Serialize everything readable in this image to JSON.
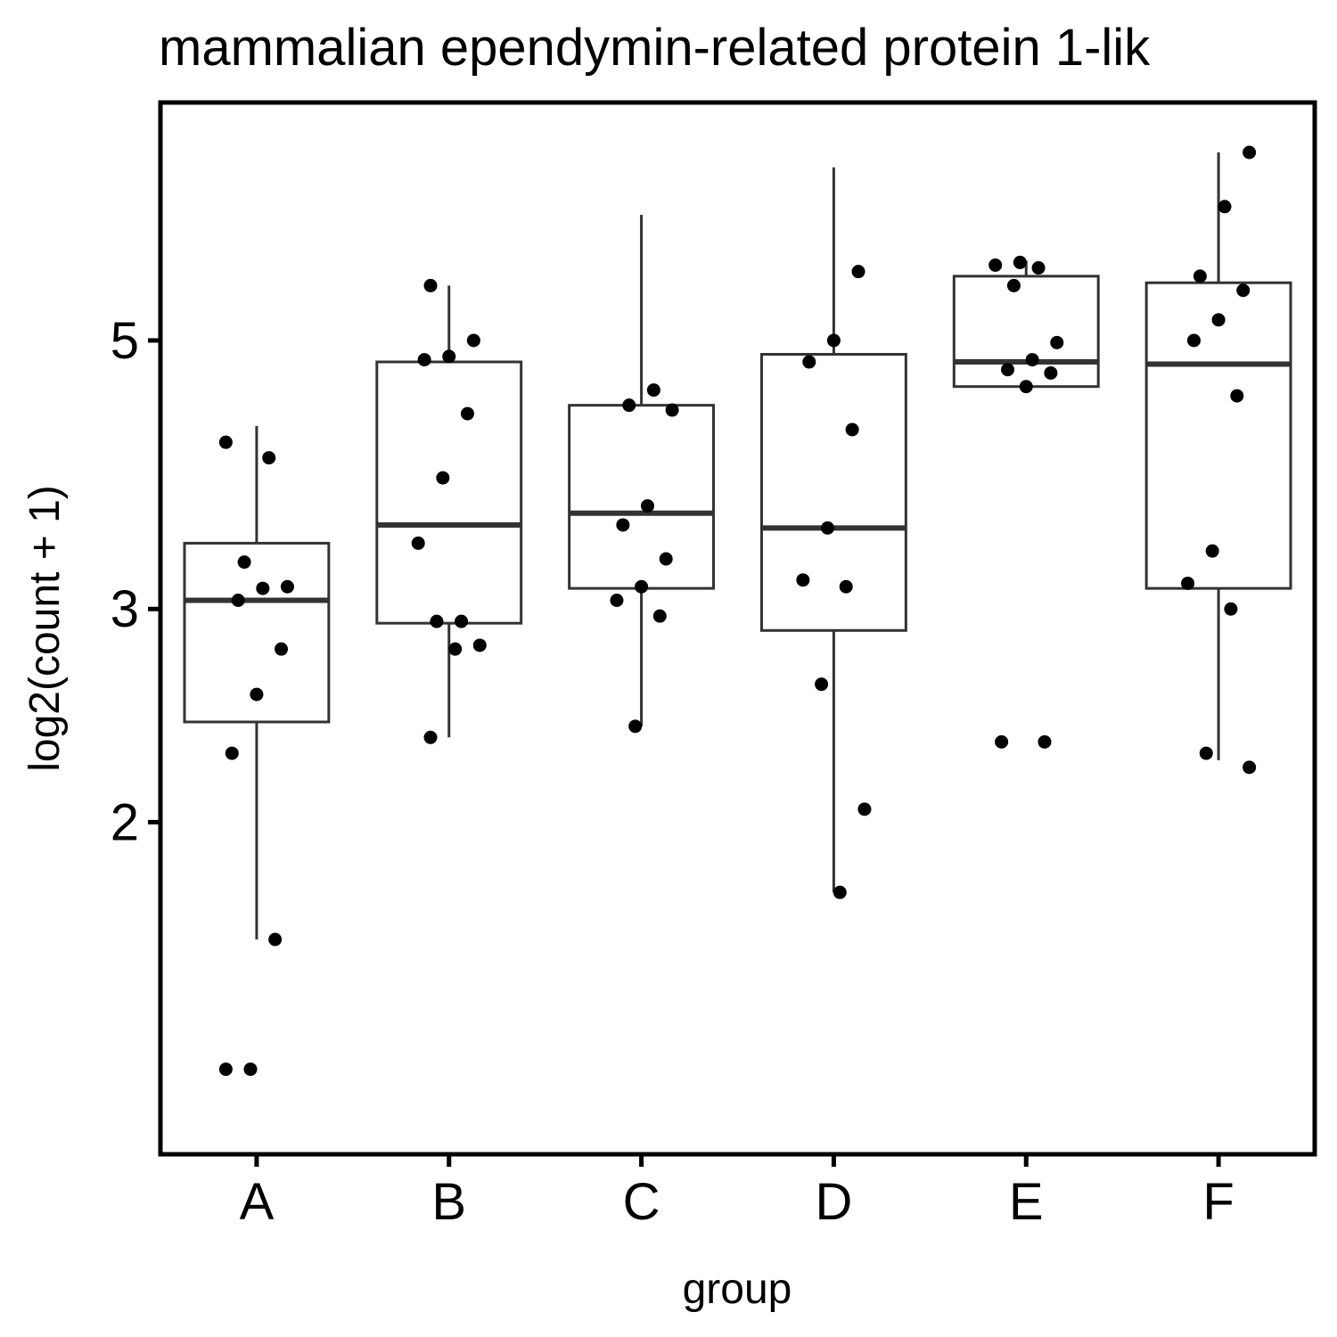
{
  "chart_data": {
    "type": "box",
    "title": "mammalian ependymin-related protein 1-lik",
    "xlabel": "group",
    "ylabel": "log2(count + 1)",
    "y_scale": "log",
    "y_ticks": [
      2,
      3,
      5
    ],
    "ylim": [
      1.1,
      7.6
    ],
    "categories": [
      "A",
      "B",
      "C",
      "D",
      "E",
      "F"
    ],
    "boxes": [
      {
        "group": "A",
        "whisker_low": 1.6,
        "q1": 2.42,
        "median": 3.05,
        "q3": 3.4,
        "whisker_high": 4.25
      },
      {
        "group": "B",
        "whisker_low": 2.35,
        "q1": 2.92,
        "median": 3.52,
        "q3": 4.8,
        "whisker_high": 5.55
      },
      {
        "group": "C",
        "whisker_low": 2.4,
        "q1": 3.12,
        "median": 3.6,
        "q3": 4.42,
        "whisker_high": 6.35
      },
      {
        "group": "D",
        "whisker_low": 1.75,
        "q1": 2.88,
        "median": 3.5,
        "q3": 4.87,
        "whisker_high": 6.95
      },
      {
        "group": "E",
        "whisker_low": 4.58,
        "q1": 4.58,
        "median": 4.8,
        "q3": 5.65,
        "whisker_high": 5.82
      },
      {
        "group": "F",
        "whisker_low": 2.25,
        "q1": 3.12,
        "median": 4.78,
        "q3": 5.58,
        "whisker_high": 7.15
      }
    ],
    "points": [
      {
        "group": "A",
        "values": [
          1.25,
          1.25,
          1.6,
          2.28,
          2.55,
          2.78,
          3.05,
          3.12,
          3.13,
          3.28,
          4.0,
          4.12
        ]
      },
      {
        "group": "B",
        "values": [
          2.35,
          2.78,
          2.8,
          2.93,
          2.93,
          3.4,
          3.85,
          4.35,
          4.82,
          4.85,
          5.0,
          5.55
        ]
      },
      {
        "group": "C",
        "values": [
          2.4,
          2.96,
          3.05,
          3.13,
          3.3,
          3.52,
          3.65,
          4.38,
          4.42,
          4.55
        ]
      },
      {
        "group": "D",
        "values": [
          1.75,
          2.05,
          2.6,
          3.13,
          3.17,
          3.5,
          4.22,
          4.8,
          5.0,
          5.7
        ]
      },
      {
        "group": "E",
        "values": [
          2.33,
          2.33,
          4.58,
          4.7,
          4.73,
          4.82,
          4.98,
          5.55,
          5.74,
          5.77,
          5.8
        ]
      },
      {
        "group": "F",
        "values": [
          2.22,
          2.28,
          3.0,
          3.15,
          3.35,
          4.5,
          5.0,
          5.2,
          5.5,
          5.65,
          6.45,
          7.15
        ]
      }
    ],
    "grid": false,
    "legend": "none"
  }
}
